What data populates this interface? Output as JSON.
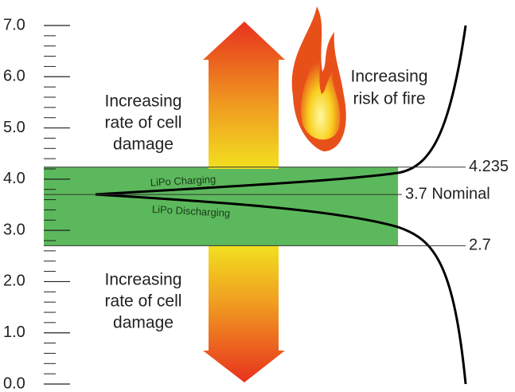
{
  "chart_data": {
    "type": "voltage-diagram",
    "ylim": [
      0,
      7
    ],
    "yticks": [
      {
        "value": 0,
        "label": "0.0"
      },
      {
        "value": 1,
        "label": "1.0"
      },
      {
        "value": 2,
        "label": "2.0"
      },
      {
        "value": 3,
        "label": "3.0"
      },
      {
        "value": 4,
        "label": "4.0"
      },
      {
        "value": 5,
        "label": "5.0"
      },
      {
        "value": 6,
        "label": "6.0"
      },
      {
        "value": 7,
        "label": "7.0"
      }
    ],
    "levels": [
      4.235,
      {
        "value": 3.7,
        "label": "3.7 Nominal"
      },
      2.7
    ],
    "band_color": "#5cb85c",
    "upper_note": [
      "Increasing",
      "rate of cell",
      "damage"
    ],
    "lower_note": [
      "Increasing",
      "rate of cell",
      "damage"
    ],
    "fire_note": [
      "Increasing",
      "risk of fire"
    ],
    "charging_label": "LiPo Charging",
    "discharging_label": "LiPo Discharging"
  }
}
